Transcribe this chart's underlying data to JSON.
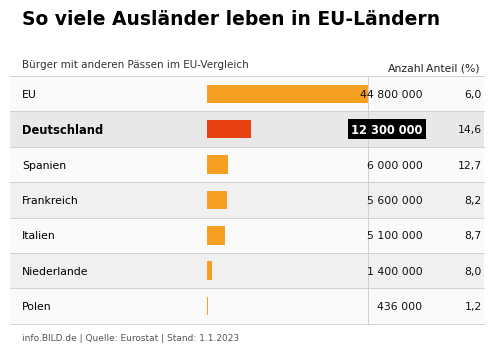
{
  "title": "So viele Ausländer leben in EU-Ländern",
  "subtitle": "Bürger mit anderen Pässen im EU-Vergleich",
  "footer": "info.BILD.de | Quelle: Eurostat | Stand: 1.1.2023",
  "col_anzahl": "Anzahl",
  "col_anteil": "Anteil (%)",
  "categories": [
    "EU",
    "Deutschland",
    "Spanien",
    "Frankreich",
    "Italien",
    "Niederlande",
    "Polen"
  ],
  "values": [
    44800000,
    12300000,
    6000000,
    5600000,
    5100000,
    1400000,
    436000
  ],
  "anteil": [
    "6,0",
    "14,6",
    "12,7",
    "8,2",
    "8,7",
    "8,0",
    "1,2"
  ],
  "anzahl_labels": [
    "44 800 000",
    "12 300 000",
    "6 000 000",
    "5 600 000",
    "5 100 000",
    "1 400 000",
    "436 000"
  ],
  "bar_colors": [
    "#F5A020",
    "#E84010",
    "#F5A020",
    "#F5A020",
    "#F5A020",
    "#F5A020",
    "#F5A020"
  ],
  "highlight_row": 1,
  "row_bg_odd": "#F0F0F0",
  "row_bg_even": "#FAFAFA",
  "row_bg_highlight": "#E8E8E8",
  "title_fontsize": 13.5,
  "subtitle_fontsize": 7.5,
  "label_fontsize": 7.8,
  "value_fontsize": 7.8,
  "footer_fontsize": 6.5,
  "max_value": 44800000,
  "bar_scale": 44800000
}
